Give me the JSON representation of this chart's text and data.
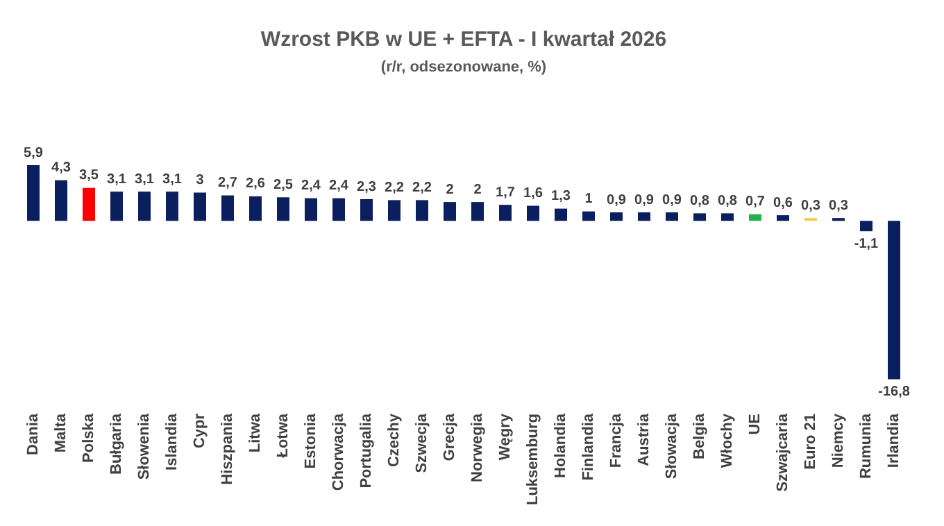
{
  "chart_data": {
    "type": "bar",
    "title": "Wzrost PKB w UE + EFTA - I kwartał 2026",
    "subtitle": "(r/r, odsezonowane, %)",
    "categories": [
      "Dania",
      "Malta",
      "Polska",
      "Bułgaria",
      "Słowenia",
      "Islandia",
      "Cypr",
      "Hiszpania",
      "Litwa",
      "Łotwa",
      "Estonia",
      "Chorwacja",
      "Portugalia",
      "Czechy",
      "Szwecja",
      "Grecja",
      "Norwegia",
      "Węgry",
      "Luksemburg",
      "Holandia",
      "Finlandia",
      "Francja",
      "Austria",
      "Słowacja",
      "Belgia",
      "Włochy",
      "UE",
      "Szwajcaria",
      "Euro 21",
      "Niemcy",
      "Rumunia",
      "Irlandia"
    ],
    "values": [
      5.9,
      4.3,
      3.5,
      3.1,
      3.1,
      3.1,
      3,
      2.7,
      2.6,
      2.5,
      2.4,
      2.4,
      2.3,
      2.2,
      2.2,
      2,
      2,
      1.7,
      1.6,
      1.3,
      1,
      0.9,
      0.9,
      0.9,
      0.8,
      0.8,
      0.7,
      0.6,
      0.3,
      0.3,
      -1.1,
      -16.8
    ],
    "value_labels": [
      "5,9",
      "4,3",
      "3,5",
      "3,1",
      "3,1",
      "3,1",
      "3",
      "2,7",
      "2,6",
      "2,5",
      "2,4",
      "2,4",
      "2,3",
      "2,2",
      "2,2",
      "2",
      "2",
      "1,7",
      "1,6",
      "1,3",
      "1",
      "0,9",
      "0,9",
      "0,9",
      "0,8",
      "0,8",
      "0,7",
      "0,6",
      "0,3",
      "0,3",
      "-1,1",
      "-16,8"
    ],
    "colors": [
      "#0b1f5e",
      "#0b1f5e",
      "#ff0000",
      "#0b1f5e",
      "#0b1f5e",
      "#0b1f5e",
      "#0b1f5e",
      "#0b1f5e",
      "#0b1f5e",
      "#0b1f5e",
      "#0b1f5e",
      "#0b1f5e",
      "#0b1f5e",
      "#0b1f5e",
      "#0b1f5e",
      "#0b1f5e",
      "#0b1f5e",
      "#0b1f5e",
      "#0b1f5e",
      "#0b1f5e",
      "#0b1f5e",
      "#0b1f5e",
      "#0b1f5e",
      "#0b1f5e",
      "#0b1f5e",
      "#0b1f5e",
      "#22b14c",
      "#0b1f5e",
      "#f2d04a",
      "#0b1f5e",
      "#0b1f5e",
      "#0b1f5e"
    ],
    "grid": false,
    "legend": false
  }
}
